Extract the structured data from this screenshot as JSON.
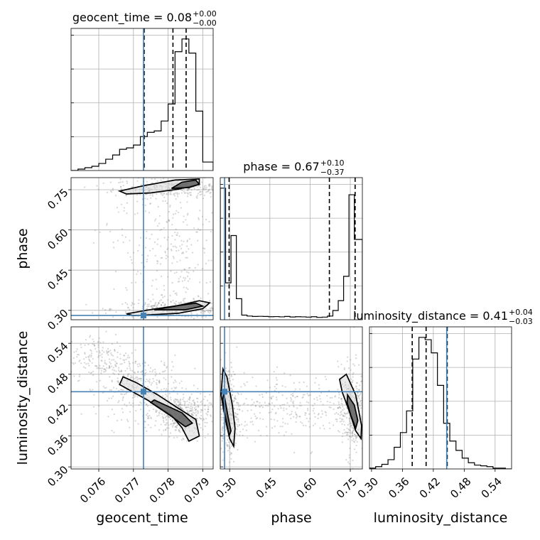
{
  "chart_data": {
    "type": "corner",
    "parameters": [
      "geocent_time",
      "phase",
      "luminosity_distance"
    ],
    "axis_labels": {
      "geocent_time": "geocent_time",
      "phase": "phase",
      "luminosity_distance": "luminosity_distance"
    },
    "ranges": {
      "geocent_time": [
        0.0752,
        0.0793
      ],
      "phase": [
        0.265,
        0.795
      ],
      "luminosity_distance": [
        0.296,
        0.572
      ]
    },
    "ticks": {
      "geocent_time": [
        0.076,
        0.077,
        0.078,
        0.079
      ],
      "phase": [
        0.3,
        0.45,
        0.6,
        0.75
      ],
      "luminosity_distance": [
        0.3,
        0.36,
        0.42,
        0.48,
        0.54
      ]
    },
    "tick_labels": {
      "geocent_time": [
        "0.076",
        "0.077",
        "0.078",
        "0.079"
      ],
      "phase": [
        "0.30",
        "0.45",
        "0.60",
        "0.75"
      ],
      "luminosity_distance": [
        "0.30",
        "0.36",
        "0.42",
        "0.48",
        "0.54"
      ]
    },
    "titles": [
      {
        "param": "geocent_time",
        "text": "geocent_time = 0.08",
        "plus": "+0.00",
        "minus": "−0.00"
      },
      {
        "param": "phase",
        "text": "phase = 0.67",
        "plus": "+0.10",
        "minus": "−0.37"
      },
      {
        "param": "luminosity_distance",
        "text": "luminosity_distance = 0.41",
        "plus": "+0.04",
        "minus": "−0.03"
      }
    ],
    "truths": {
      "geocent_time": 0.07729,
      "phase": 0.281,
      "luminosity_distance": 0.446
    },
    "quantiles": {
      "geocent_time": [
        0.07731,
        0.07814,
        0.07852
      ],
      "phase": [
        0.298,
        0.672,
        0.768
      ],
      "luminosity_distance": [
        0.379,
        0.406,
        0.447
      ]
    },
    "histograms": {
      "geocent_time": {
        "edges": [
          0.0752,
          0.0754,
          0.0756,
          0.0758,
          0.076,
          0.0762,
          0.0764,
          0.0766,
          0.0768,
          0.077,
          0.0772,
          0.0774,
          0.0776,
          0.0778,
          0.078,
          0.0782,
          0.0784,
          0.0786,
          0.0788,
          0.079,
          0.0793
        ],
        "counts": [
          0,
          1,
          2,
          3,
          5,
          8,
          11,
          15,
          16,
          18,
          24,
          27,
          28,
          35,
          47,
          84,
          93,
          83,
          42,
          6
        ]
      },
      "phase": {
        "edges": [
          0.265,
          0.285,
          0.305,
          0.325,
          0.345,
          0.365,
          0.385,
          0.405,
          0.425,
          0.445,
          0.465,
          0.485,
          0.505,
          0.525,
          0.545,
          0.565,
          0.585,
          0.605,
          0.625,
          0.645,
          0.665,
          0.685,
          0.705,
          0.725,
          0.745,
          0.765,
          0.795
        ],
        "counts": [
          1000,
          280,
          640,
          160,
          35,
          28,
          25,
          26,
          25,
          23,
          24,
          22,
          25,
          21,
          23,
          22,
          20,
          23,
          18,
          20,
          28,
          70,
          145,
          330,
          950,
          610
        ]
      },
      "luminosity_distance": {
        "edges": [
          0.296,
          0.308,
          0.32,
          0.332,
          0.344,
          0.356,
          0.368,
          0.38,
          0.392,
          0.404,
          0.416,
          0.428,
          0.44,
          0.452,
          0.464,
          0.476,
          0.488,
          0.5,
          0.512,
          0.524,
          0.536,
          0.548,
          0.56,
          0.572
        ],
        "counts": [
          1,
          3,
          6,
          12,
          28,
          47,
          75,
          142,
          170,
          167,
          150,
          108,
          59,
          36,
          24,
          14,
          8,
          5,
          4,
          3,
          1,
          1,
          0
        ]
      }
    },
    "contours_2d": {
      "phase|geocent_time": {
        "outer": [
          [
            [
              0.0766,
              0.745
            ],
            [
              0.0773,
              0.765
            ],
            [
              0.0782,
              0.786
            ],
            [
              0.0789,
              0.79
            ],
            [
              0.0789,
              0.77
            ],
            [
              0.0783,
              0.752
            ],
            [
              0.0775,
              0.738
            ],
            [
              0.0768,
              0.734
            ]
          ],
          [
            [
              0.077,
              0.28
            ],
            [
              0.0768,
              0.287
            ],
            [
              0.0775,
              0.303
            ],
            [
              0.0783,
              0.318
            ],
            [
              0.0789,
              0.336
            ],
            [
              0.0792,
              0.328
            ],
            [
              0.079,
              0.306
            ],
            [
              0.0783,
              0.289
            ]
          ]
        ],
        "inner": [
          [
            [
              0.0781,
              0.755
            ],
            [
              0.0784,
              0.778
            ],
            [
              0.0788,
              0.786
            ],
            [
              0.0789,
              0.77
            ],
            [
              0.0786,
              0.758
            ]
          ],
          [
            [
              0.0776,
              0.302
            ],
            [
              0.0783,
              0.318
            ],
            [
              0.0788,
              0.327
            ],
            [
              0.079,
              0.316
            ],
            [
              0.0785,
              0.302
            ]
          ]
        ]
      },
      "luminosity_distance|geocent_time": {
        "outer": [
          [
            [
              0.0767,
              0.475
            ],
            [
              0.0766,
              0.46
            ],
            [
              0.0774,
              0.43
            ],
            [
              0.0781,
              0.4
            ],
            [
              0.0784,
              0.376
            ],
            [
              0.0786,
              0.35
            ],
            [
              0.0789,
              0.36
            ],
            [
              0.0788,
              0.392
            ],
            [
              0.0782,
              0.418
            ],
            [
              0.0777,
              0.44
            ],
            [
              0.0771,
              0.463
            ]
          ]
        ],
        "inner": [
          [
            [
              0.0776,
              0.43
            ],
            [
              0.0784,
              0.405
            ],
            [
              0.0787,
              0.385
            ],
            [
              0.0785,
              0.378
            ],
            [
              0.0781,
              0.398
            ],
            [
              0.0775,
              0.425
            ]
          ]
        ]
      },
      "luminosity_distance|phase": {
        "outer": [
          [
            [
              0.275,
              0.49
            ],
            [
              0.268,
              0.44
            ],
            [
              0.285,
              0.39
            ],
            [
              0.3,
              0.355
            ],
            [
              0.315,
              0.34
            ],
            [
              0.32,
              0.375
            ],
            [
              0.31,
              0.42
            ],
            [
              0.29,
              0.475
            ]
          ],
          [
            [
              0.71,
              0.47
            ],
            [
              0.735,
              0.48
            ],
            [
              0.77,
              0.44
            ],
            [
              0.792,
              0.38
            ],
            [
              0.79,
              0.355
            ],
            [
              0.77,
              0.37
            ],
            [
              0.745,
              0.41
            ],
            [
              0.72,
              0.445
            ]
          ]
        ],
        "inner": [
          [
            [
              0.278,
              0.445
            ],
            [
              0.295,
              0.395
            ],
            [
              0.305,
              0.37
            ],
            [
              0.298,
              0.36
            ],
            [
              0.285,
              0.395
            ],
            [
              0.274,
              0.43
            ]
          ],
          [
            [
              0.74,
              0.44
            ],
            [
              0.765,
              0.42
            ],
            [
              0.778,
              0.39
            ],
            [
              0.77,
              0.375
            ],
            [
              0.752,
              0.4
            ],
            [
              0.738,
              0.425
            ]
          ]
        ]
      }
    },
    "scatter_clusters": {
      "phase|geocent_time": [
        {
          "mean": [
            0.0782,
            0.755
          ],
          "sd": [
            0.0009,
            0.018
          ],
          "weight": 0.34
        },
        {
          "mean": [
            0.0782,
            0.305
          ],
          "sd": [
            0.0009,
            0.016
          ],
          "weight": 0.34
        },
        {
          "mean": [
            0.0783,
            0.53
          ],
          "sd": [
            0.0006,
            0.13
          ],
          "weight": 0.22
        },
        {
          "mean": [
            0.0772,
            0.53
          ],
          "sd": [
            0.0006,
            0.16
          ],
          "weight": 0.1
        }
      ],
      "luminosity_distance|geocent_time": [
        {
          "mean": [
            0.0772,
            0.455
          ],
          "sd": [
            0.0006,
            0.03
          ],
          "weight": 0.35
        },
        {
          "mean": [
            0.0784,
            0.4
          ],
          "sd": [
            0.0004,
            0.02
          ],
          "weight": 0.45
        },
        {
          "mean": [
            0.076,
            0.51
          ],
          "sd": [
            0.0005,
            0.025
          ],
          "weight": 0.2
        }
      ],
      "luminosity_distance|phase": [
        {
          "mean": [
            0.295,
            0.41
          ],
          "sd": [
            0.02,
            0.045
          ],
          "weight": 0.35
        },
        {
          "mean": [
            0.755,
            0.41
          ],
          "sd": [
            0.025,
            0.045
          ],
          "weight": 0.35
        },
        {
          "mean": [
            0.53,
            0.42
          ],
          "sd": [
            0.12,
            0.03
          ],
          "weight": 0.3
        }
      ]
    },
    "grid": true
  }
}
